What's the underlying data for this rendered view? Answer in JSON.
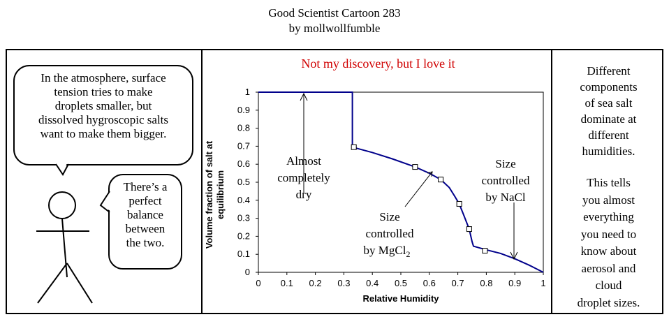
{
  "header": {
    "title_line1": "Good Scientist Cartoon 283",
    "title_line2": "by mollwollfumble"
  },
  "panel_left": {
    "bubble_top": "In the atmosphere, surface\ntension tries to  make\ndroplets smaller, but\ndissolved hygroscopic salts\nwant to make them bigger.",
    "bubble_right": "There’s a\nperfect\nbalance\nbetween\nthe two."
  },
  "panel_middle": {
    "caption": "Not my discovery, but I love it",
    "annotations": {
      "dry_line1": "Almost",
      "dry_line2": "completely",
      "dry_line3": "dry",
      "mgcl_line1": "Size",
      "mgcl_line2": "controlled",
      "mgcl_line3": "by MgCl",
      "mgcl_sub": "2",
      "nacl_line1": "Size",
      "nacl_line2": "controlled",
      "nacl_line3": "by NaCl"
    }
  },
  "panel_right": {
    "text1": "Different\ncomponents\nof sea salt\ndominate at\ndifferent\nhumidities.",
    "text2": "This tells\nyou almost\neverything\nyou need to\nknow about\naerosol and\ncloud\ndroplet sizes."
  },
  "colors": {
    "curve": "#00008b",
    "caption": "#d00000"
  },
  "chart_data": {
    "type": "line",
    "title": "",
    "xlabel": "Relative Humidity",
    "ylabel_line1": "Volume fraction of salt at",
    "ylabel_line2": "equilibrium",
    "xlim": [
      0,
      1
    ],
    "ylim": [
      0,
      1
    ],
    "x_ticks": [
      "0",
      "0.1",
      "0.2",
      "0.3",
      "0.4",
      "0.5",
      "0.6",
      "0.7",
      "0.8",
      "0.9",
      "1"
    ],
    "y_ticks": [
      "0",
      "0.1",
      "0.2",
      "0.3",
      "0.4",
      "0.5",
      "0.6",
      "0.7",
      "0.8",
      "0.9",
      "1"
    ],
    "curve": [
      [
        0.0,
        1.0
      ],
      [
        0.33,
        1.0
      ],
      [
        0.33,
        0.695
      ],
      [
        0.4,
        0.665
      ],
      [
        0.47,
        0.63
      ],
      [
        0.55,
        0.585
      ],
      [
        0.6,
        0.55
      ],
      [
        0.64,
        0.515
      ],
      [
        0.67,
        0.47
      ],
      [
        0.69,
        0.42
      ],
      [
        0.705,
        0.38
      ],
      [
        0.72,
        0.32
      ],
      [
        0.74,
        0.24
      ],
      [
        0.75,
        0.17
      ],
      [
        0.755,
        0.145
      ],
      [
        0.8,
        0.125
      ],
      [
        0.85,
        0.105
      ],
      [
        0.9,
        0.075
      ],
      [
        0.95,
        0.04
      ],
      [
        1.0,
        0.0
      ]
    ],
    "markers": [
      [
        0.335,
        0.695
      ],
      [
        0.55,
        0.585
      ],
      [
        0.64,
        0.515
      ],
      [
        0.705,
        0.38
      ],
      [
        0.74,
        0.24
      ],
      [
        0.795,
        0.12
      ]
    ]
  }
}
